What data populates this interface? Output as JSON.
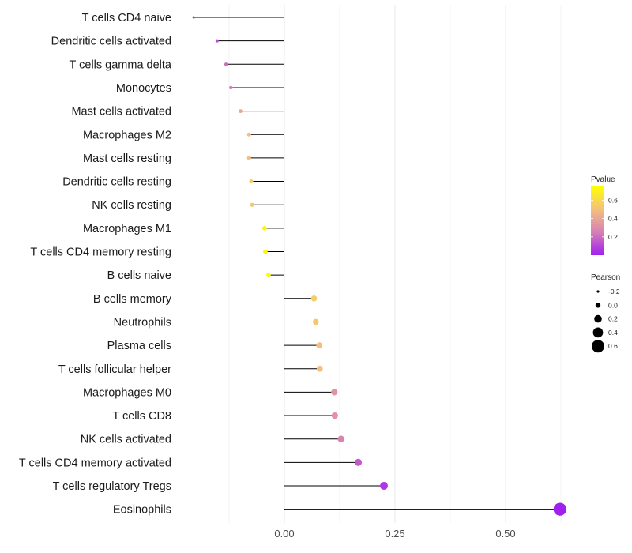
{
  "chart_data": {
    "type": "lollipop",
    "title": "",
    "xlabel": "",
    "ylabel": "",
    "xlim": [
      -0.21,
      0.62
    ],
    "x_ticks": [
      0.0,
      0.25,
      0.5
    ],
    "x_tick_labels": [
      "0.00",
      "0.25",
      "0.50"
    ],
    "grid": true,
    "points": [
      {
        "label": "T cells CD4 naive",
        "value": -0.205,
        "pvalue": 0.02
      },
      {
        "label": "Dendritic cells activated",
        "value": -0.152,
        "pvalue": 0.12
      },
      {
        "label": "T cells gamma delta",
        "value": -0.132,
        "pvalue": 0.2
      },
      {
        "label": "Monocytes",
        "value": -0.121,
        "pvalue": 0.24
      },
      {
        "label": "Mast cells activated",
        "value": -0.099,
        "pvalue": 0.4
      },
      {
        "label": "Macrophages M2",
        "value": -0.08,
        "pvalue": 0.5
      },
      {
        "label": "Mast cells resting",
        "value": -0.08,
        "pvalue": 0.5
      },
      {
        "label": "Dendritic cells resting",
        "value": -0.075,
        "pvalue": 0.53
      },
      {
        "label": "NK cells resting",
        "value": -0.073,
        "pvalue": 0.53
      },
      {
        "label": "Macrophages M1",
        "value": -0.045,
        "pvalue": 0.7
      },
      {
        "label": "T cells CD4 memory resting",
        "value": -0.043,
        "pvalue": 0.71
      },
      {
        "label": "B cells naive",
        "value": -0.036,
        "pvalue": 0.75
      },
      {
        "label": "B cells memory",
        "value": 0.067,
        "pvalue": 0.55
      },
      {
        "label": "Neutrophils",
        "value": 0.071,
        "pvalue": 0.53
      },
      {
        "label": "Plasma cells",
        "value": 0.079,
        "pvalue": 0.5
      },
      {
        "label": "T cells follicular helper",
        "value": 0.08,
        "pvalue": 0.5
      },
      {
        "label": "Macrophages M0",
        "value": 0.113,
        "pvalue": 0.33
      },
      {
        "label": "T cells CD8",
        "value": 0.114,
        "pvalue": 0.33
      },
      {
        "label": "NK cells activated",
        "value": 0.128,
        "pvalue": 0.27
      },
      {
        "label": "T cells CD4 memory activated",
        "value": 0.167,
        "pvalue": 0.15
      },
      {
        "label": "T cells regulatory  Tregs",
        "value": 0.225,
        "pvalue": 0.06
      },
      {
        "label": "Eosinophils",
        "value": 0.623,
        "pvalue": 0.0
      }
    ],
    "legend_pvalue": {
      "title": "Pvalue",
      "range": [
        0.0,
        0.75
      ],
      "ticks": [
        0.6,
        0.4,
        0.2
      ],
      "tick_labels": [
        "0.6",
        "0.4",
        "0.2"
      ],
      "colors": [
        "#a020f0",
        "#d77fb4",
        "#f3c07f",
        "#ffff00"
      ]
    },
    "legend_pearson": {
      "title": "Pearson",
      "values": [
        -0.2,
        0.0,
        0.2,
        0.4,
        0.6
      ],
      "labels": [
        "-0.2",
        "0.0",
        "0.2",
        "0.4",
        "0.6"
      ]
    },
    "colors": {
      "stem": "#000000",
      "grid": "#ebebeb"
    }
  }
}
